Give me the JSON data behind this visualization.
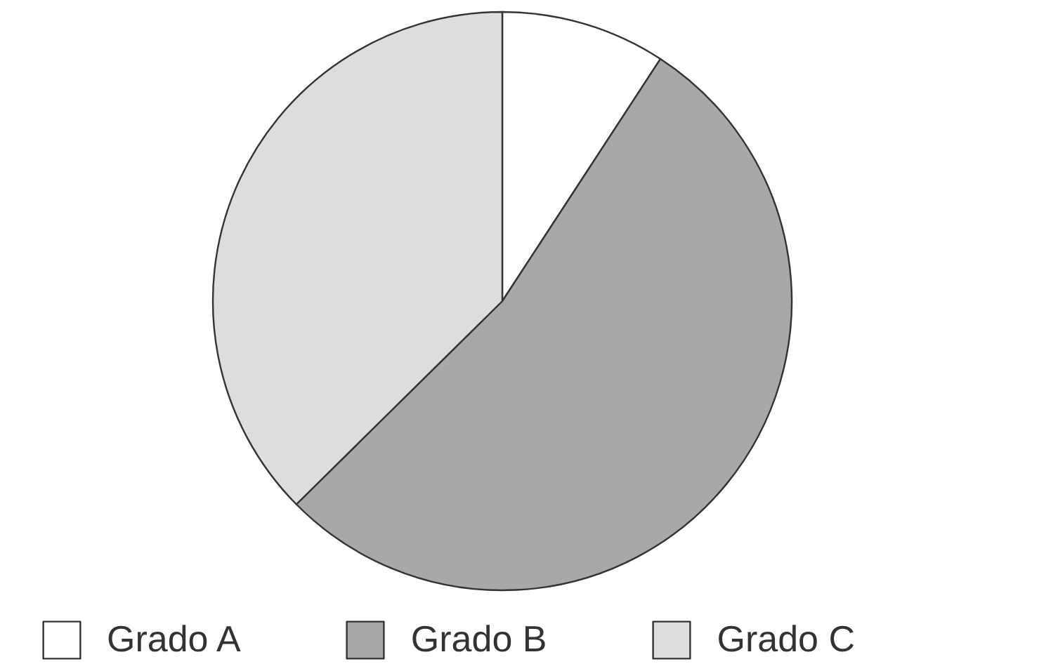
{
  "chart_data": {
    "type": "pie",
    "categories": [
      "Grado A",
      "Grado B",
      "Grado C"
    ],
    "values": [
      9.2,
      53.4,
      37.4
    ],
    "colors": [
      "#ffffff",
      "#a7a8aa",
      "#dcddde"
    ],
    "legend": "bottom"
  }
}
